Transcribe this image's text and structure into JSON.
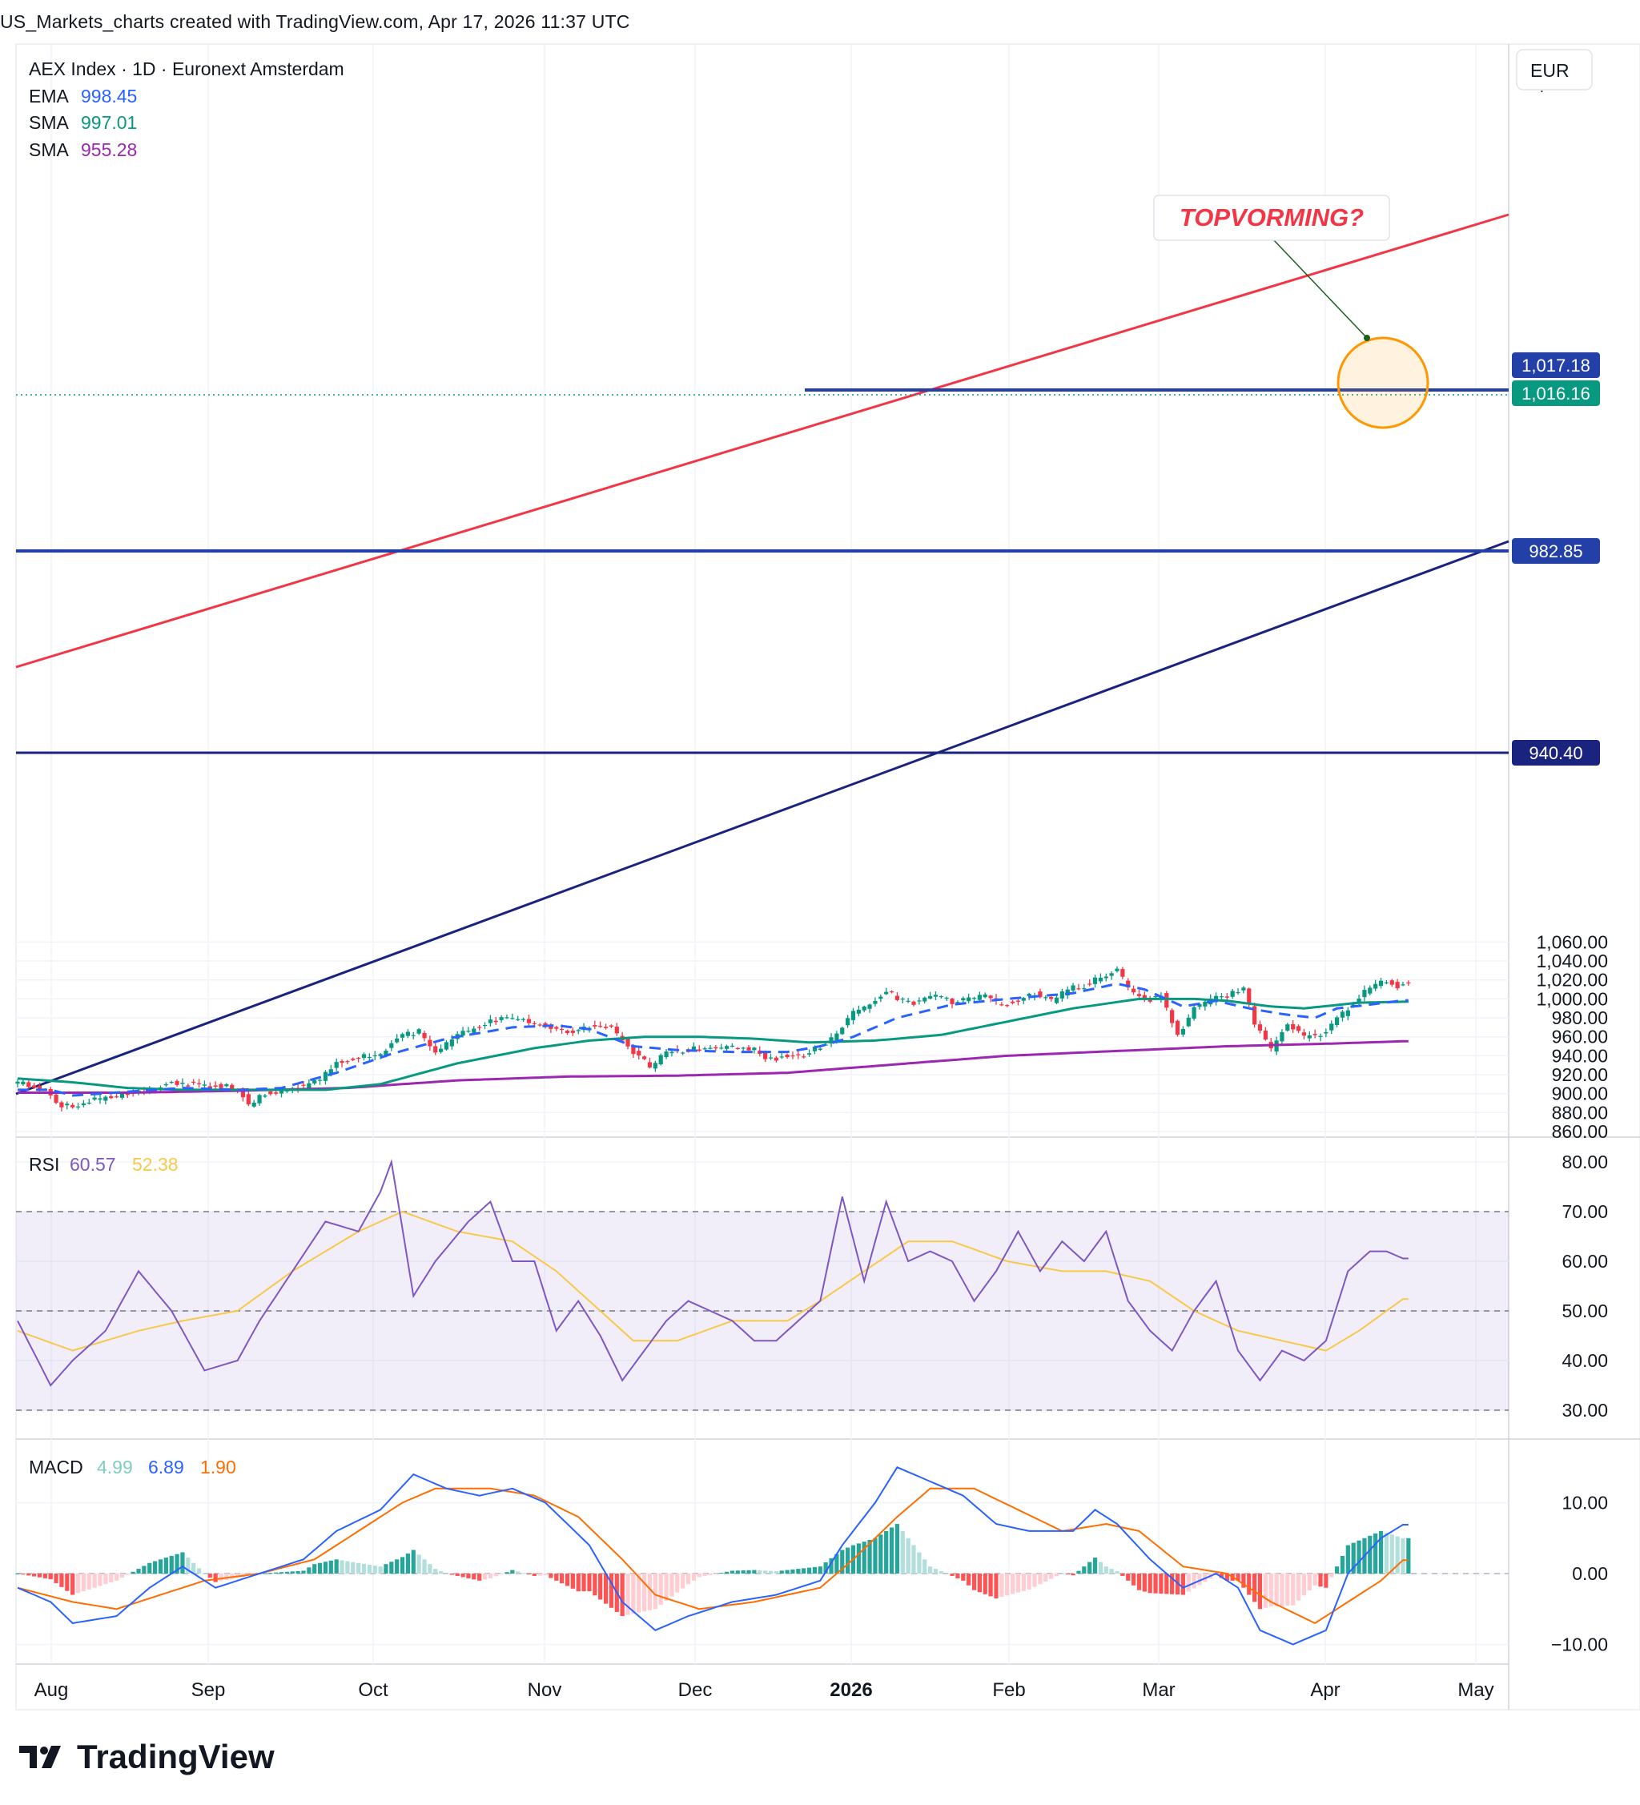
{
  "header": {
    "caption": "US_Markets_charts created with TradingView.com, Apr 17, 2026 11:37 UTC"
  },
  "legend": {
    "title": "AEX Index · 1D · Euronext Amsterdam",
    "indicators": [
      {
        "name": "EMA",
        "value": "998.45",
        "color": "#2962ff"
      },
      {
        "name": "SMA",
        "value": "997.01",
        "color": "#089981"
      },
      {
        "name": "SMA",
        "value": "955.28",
        "color": "#9c27b0"
      }
    ],
    "rsi": {
      "name": "RSI",
      "value1": "60.57",
      "value2": "52.38",
      "color1": "#7e57c2",
      "color2": "#f7c948"
    },
    "macd": {
      "name": "MACD",
      "hist": "4.99",
      "macd": "6.89",
      "signal": "1.90",
      "color_hist": "#7ecfc0",
      "color_macd": "#2962ff",
      "color_signal": "#ff6d00"
    }
  },
  "currency": "EUR",
  "annotation": {
    "text": "TOPVORMING?",
    "color": "#f23645"
  },
  "price_labels": [
    {
      "value": "1,017.18",
      "bg": "#2340a8"
    },
    {
      "value": "1,016.16",
      "bg": "#089981"
    },
    {
      "value": "982.85",
      "bg": "#2340a8"
    },
    {
      "value": "940.40",
      "bg": "#1a237e"
    }
  ],
  "brand": "TradingView",
  "chart_data": {
    "type": "candlestick",
    "x_ticks": [
      "Aug",
      "Sep",
      "Oct",
      "Nov",
      "Dec",
      "2026",
      "Feb",
      "Mar",
      "Apr",
      "May"
    ],
    "price_axis": {
      "ticks": [
        "860.00",
        "880.00",
        "900.00",
        "920.00",
        "940.00",
        "960.00",
        "980.00",
        "1,000.00",
        "1,020.00",
        "1,040.00",
        "1,060.00"
      ],
      "range": [
        860,
        1070
      ]
    },
    "rsi_axis": {
      "ticks": [
        "30.00",
        "40.00",
        "50.00",
        "60.00",
        "70.00",
        "80.00"
      ],
      "range": [
        26,
        83
      ],
      "band": [
        30,
        70
      ]
    },
    "macd_axis": {
      "ticks": [
        "−10.00",
        "0.00",
        "10.00"
      ],
      "range": [
        -13,
        16
      ]
    },
    "close_anchors": [
      [
        0,
        912
      ],
      [
        5,
        905
      ],
      [
        8,
        886
      ],
      [
        12,
        890
      ],
      [
        16,
        896
      ],
      [
        20,
        900
      ],
      [
        24,
        904
      ],
      [
        28,
        912
      ],
      [
        32,
        910
      ],
      [
        36,
        908
      ],
      [
        40,
        906
      ],
      [
        42,
        888
      ],
      [
        45,
        900
      ],
      [
        49,
        905
      ],
      [
        52,
        908
      ],
      [
        55,
        915
      ],
      [
        58,
        932
      ],
      [
        62,
        938
      ],
      [
        66,
        942
      ],
      [
        70,
        962
      ],
      [
        73,
        966
      ],
      [
        76,
        942
      ],
      [
        80,
        962
      ],
      [
        83,
        968
      ],
      [
        86,
        976
      ],
      [
        90,
        980
      ],
      [
        94,
        974
      ],
      [
        97,
        968
      ],
      [
        100,
        966
      ],
      [
        104,
        970
      ],
      [
        108,
        970
      ],
      [
        111,
        950
      ],
      [
        115,
        928
      ],
      [
        118,
        944
      ],
      [
        122,
        946
      ],
      [
        126,
        950
      ],
      [
        130,
        948
      ],
      [
        134,
        946
      ],
      [
        137,
        936
      ],
      [
        140,
        940
      ],
      [
        143,
        942
      ],
      [
        146,
        950
      ],
      [
        149,
        962
      ],
      [
        152,
        986
      ],
      [
        155,
        994
      ],
      [
        158,
        1008
      ],
      [
        161,
        998
      ],
      [
        164,
        996
      ],
      [
        167,
        1004
      ],
      [
        170,
        996
      ],
      [
        173,
        1000
      ],
      [
        176,
        1004
      ],
      [
        179,
        992
      ],
      [
        182,
        1000
      ],
      [
        185,
        1006
      ],
      [
        188,
        998
      ],
      [
        191,
        1010
      ],
      [
        194,
        1014
      ],
      [
        197,
        1024
      ],
      [
        200,
        1030
      ],
      [
        202,
        1012
      ],
      [
        205,
        998
      ],
      [
        208,
        1004
      ],
      [
        211,
        960
      ],
      [
        214,
        990
      ],
      [
        217,
        1000
      ],
      [
        220,
        1004
      ],
      [
        223,
        1012
      ],
      [
        225,
        975
      ],
      [
        228,
        946
      ],
      [
        231,
        975
      ],
      [
        234,
        960
      ],
      [
        237,
        962
      ],
      [
        240,
        978
      ],
      [
        243,
        996
      ],
      [
        246,
        1012
      ],
      [
        249,
        1020
      ],
      [
        251,
        1014
      ],
      [
        253,
        1016.16
      ]
    ],
    "ema_anchors": [
      [
        0,
        904
      ],
      [
        6,
        904
      ],
      [
        10,
        898
      ],
      [
        20,
        902
      ],
      [
        30,
        906
      ],
      [
        40,
        904
      ],
      [
        48,
        906
      ],
      [
        58,
        922
      ],
      [
        68,
        942
      ],
      [
        78,
        958
      ],
      [
        90,
        970
      ],
      [
        98,
        972
      ],
      [
        104,
        968
      ],
      [
        112,
        950
      ],
      [
        120,
        946
      ],
      [
        130,
        944
      ],
      [
        140,
        944
      ],
      [
        146,
        950
      ],
      [
        152,
        960
      ],
      [
        160,
        980
      ],
      [
        170,
        994
      ],
      [
        180,
        1000
      ],
      [
        192,
        1006
      ],
      [
        200,
        1016
      ],
      [
        205,
        1010
      ],
      [
        212,
        992
      ],
      [
        218,
        998
      ],
      [
        224,
        990
      ],
      [
        230,
        984
      ],
      [
        236,
        980
      ],
      [
        240,
        990
      ],
      [
        246,
        994
      ],
      [
        252,
        998.45
      ]
    ],
    "sma50_anchors": [
      [
        0,
        916
      ],
      [
        10,
        912
      ],
      [
        20,
        906
      ],
      [
        30,
        904
      ],
      [
        44,
        904
      ],
      [
        56,
        904
      ],
      [
        66,
        910
      ],
      [
        80,
        932
      ],
      [
        94,
        948
      ],
      [
        104,
        956
      ],
      [
        114,
        960
      ],
      [
        124,
        960
      ],
      [
        134,
        958
      ],
      [
        144,
        954
      ],
      [
        156,
        956
      ],
      [
        168,
        962
      ],
      [
        180,
        976
      ],
      [
        192,
        990
      ],
      [
        204,
        1000
      ],
      [
        214,
        1000
      ],
      [
        220,
        998
      ],
      [
        228,
        992
      ],
      [
        234,
        990
      ],
      [
        244,
        996
      ],
      [
        252,
        997.01
      ]
    ],
    "sma200_anchors": [
      [
        0,
        901
      ],
      [
        20,
        901
      ],
      [
        40,
        903
      ],
      [
        60,
        906
      ],
      [
        80,
        914
      ],
      [
        100,
        918
      ],
      [
        120,
        919
      ],
      [
        140,
        922
      ],
      [
        160,
        931
      ],
      [
        180,
        940
      ],
      [
        200,
        945
      ],
      [
        220,
        950
      ],
      [
        240,
        953
      ],
      [
        252,
        955.28
      ]
    ],
    "rsi_anchors": [
      [
        0,
        48
      ],
      [
        6,
        35
      ],
      [
        10,
        40
      ],
      [
        16,
        46
      ],
      [
        22,
        58
      ],
      [
        28,
        50
      ],
      [
        34,
        38
      ],
      [
        40,
        40
      ],
      [
        44,
        48
      ],
      [
        50,
        58
      ],
      [
        56,
        68
      ],
      [
        62,
        66
      ],
      [
        66,
        74
      ],
      [
        68,
        80
      ],
      [
        72,
        53
      ],
      [
        76,
        60
      ],
      [
        82,
        68
      ],
      [
        86,
        72
      ],
      [
        90,
        60
      ],
      [
        94,
        60
      ],
      [
        98,
        46
      ],
      [
        102,
        52
      ],
      [
        106,
        45
      ],
      [
        110,
        36
      ],
      [
        114,
        42
      ],
      [
        118,
        48
      ],
      [
        122,
        52
      ],
      [
        126,
        50
      ],
      [
        130,
        48
      ],
      [
        134,
        44
      ],
      [
        138,
        44
      ],
      [
        142,
        48
      ],
      [
        146,
        52
      ],
      [
        150,
        73
      ],
      [
        154,
        56
      ],
      [
        158,
        72
      ],
      [
        162,
        60
      ],
      [
        166,
        62
      ],
      [
        170,
        60
      ],
      [
        174,
        52
      ],
      [
        178,
        58
      ],
      [
        182,
        66
      ],
      [
        186,
        58
      ],
      [
        190,
        64
      ],
      [
        194,
        60
      ],
      [
        198,
        66
      ],
      [
        202,
        52
      ],
      [
        206,
        46
      ],
      [
        210,
        42
      ],
      [
        214,
        50
      ],
      [
        218,
        56
      ],
      [
        222,
        42
      ],
      [
        226,
        36
      ],
      [
        230,
        42
      ],
      [
        234,
        40
      ],
      [
        238,
        44
      ],
      [
        242,
        58
      ],
      [
        246,
        62
      ],
      [
        249,
        62
      ],
      [
        252,
        60.57
      ]
    ],
    "rsi_ma_anchors": [
      [
        0,
        46
      ],
      [
        10,
        42
      ],
      [
        22,
        46
      ],
      [
        30,
        48
      ],
      [
        40,
        50
      ],
      [
        50,
        58
      ],
      [
        62,
        66
      ],
      [
        70,
        70
      ],
      [
        80,
        66
      ],
      [
        90,
        64
      ],
      [
        98,
        58
      ],
      [
        106,
        50
      ],
      [
        112,
        44
      ],
      [
        120,
        44
      ],
      [
        130,
        48
      ],
      [
        140,
        48
      ],
      [
        146,
        52
      ],
      [
        154,
        58
      ],
      [
        162,
        64
      ],
      [
        170,
        64
      ],
      [
        180,
        60
      ],
      [
        190,
        58
      ],
      [
        198,
        58
      ],
      [
        206,
        56
      ],
      [
        214,
        50
      ],
      [
        222,
        46
      ],
      [
        230,
        44
      ],
      [
        238,
        42
      ],
      [
        244,
        46
      ],
      [
        252,
        52.38
      ]
    ],
    "macd_anchors": [
      [
        0,
        -2
      ],
      [
        6,
        -4
      ],
      [
        10,
        -7
      ],
      [
        18,
        -6
      ],
      [
        24,
        -2
      ],
      [
        30,
        1
      ],
      [
        36,
        -2
      ],
      [
        44,
        0
      ],
      [
        52,
        2
      ],
      [
        58,
        6
      ],
      [
        66,
        9
      ],
      [
        72,
        14
      ],
      [
        78,
        12
      ],
      [
        84,
        11
      ],
      [
        90,
        12
      ],
      [
        96,
        10
      ],
      [
        104,
        4
      ],
      [
        110,
        -4
      ],
      [
        116,
        -8
      ],
      [
        122,
        -6
      ],
      [
        130,
        -4
      ],
      [
        138,
        -3
      ],
      [
        146,
        -1
      ],
      [
        150,
        4
      ],
      [
        156,
        10
      ],
      [
        160,
        15
      ],
      [
        166,
        13
      ],
      [
        172,
        11
      ],
      [
        178,
        7
      ],
      [
        184,
        6
      ],
      [
        192,
        6
      ],
      [
        196,
        9
      ],
      [
        200,
        7
      ],
      [
        206,
        2
      ],
      [
        212,
        -2
      ],
      [
        218,
        0
      ],
      [
        222,
        -2
      ],
      [
        226,
        -8
      ],
      [
        232,
        -10
      ],
      [
        238,
        -8
      ],
      [
        242,
        0
      ],
      [
        248,
        5
      ],
      [
        252,
        6.89
      ]
    ],
    "signal_anchors": [
      [
        0,
        -2
      ],
      [
        10,
        -4
      ],
      [
        18,
        -5
      ],
      [
        26,
        -3
      ],
      [
        34,
        -1
      ],
      [
        44,
        0
      ],
      [
        54,
        2
      ],
      [
        62,
        6
      ],
      [
        70,
        10
      ],
      [
        76,
        12
      ],
      [
        86,
        12
      ],
      [
        94,
        11
      ],
      [
        102,
        8
      ],
      [
        110,
        2
      ],
      [
        116,
        -3
      ],
      [
        124,
        -5
      ],
      [
        134,
        -4
      ],
      [
        146,
        -2
      ],
      [
        152,
        2
      ],
      [
        160,
        8
      ],
      [
        166,
        12
      ],
      [
        174,
        12
      ],
      [
        182,
        9
      ],
      [
        190,
        6
      ],
      [
        198,
        7
      ],
      [
        204,
        6
      ],
      [
        212,
        1
      ],
      [
        220,
        0
      ],
      [
        228,
        -4
      ],
      [
        236,
        -7
      ],
      [
        242,
        -4
      ],
      [
        248,
        -1
      ],
      [
        252,
        1.9
      ]
    ]
  }
}
